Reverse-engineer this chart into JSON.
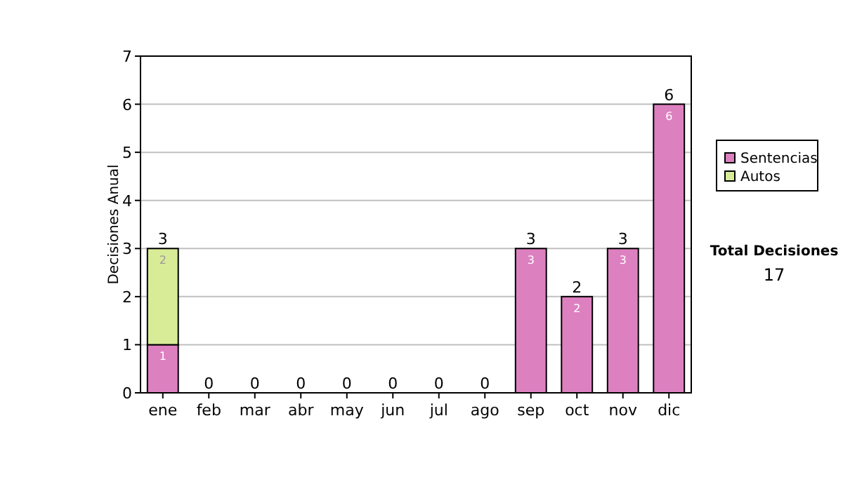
{
  "chart_data": {
    "type": "bar",
    "stacked": true,
    "ylabel": "Decisiones Anual",
    "categories": [
      "ene",
      "feb",
      "mar",
      "abr",
      "may",
      "jun",
      "jul",
      "ago",
      "sep",
      "oct",
      "nov",
      "dic"
    ],
    "series": [
      {
        "name": "Sentencias",
        "color": "#dd80c0",
        "values": [
          1,
          0,
          0,
          0,
          0,
          0,
          0,
          0,
          3,
          2,
          3,
          6
        ],
        "value_labels": [
          "1",
          null,
          null,
          null,
          null,
          null,
          null,
          null,
          "3",
          "2",
          "3",
          "6"
        ]
      },
      {
        "name": "Autos",
        "color": "#d8ec98",
        "values": [
          2,
          0,
          0,
          0,
          0,
          0,
          0,
          0,
          0,
          0,
          0,
          0
        ],
        "value_labels": [
          "2",
          null,
          null,
          null,
          null,
          null,
          null,
          null,
          null,
          null,
          null,
          null
        ]
      }
    ],
    "totals": [
      "3",
      "0",
      "0",
      "0",
      "0",
      "0",
      "0",
      "0",
      "3",
      "2",
      "3",
      "6"
    ],
    "ylim": [
      0,
      7
    ],
    "yticks": [
      0,
      1,
      2,
      3,
      4,
      5,
      6,
      7
    ],
    "grid": "y",
    "legend": "right",
    "annotations": [
      "Total Decisiones",
      "17"
    ]
  }
}
